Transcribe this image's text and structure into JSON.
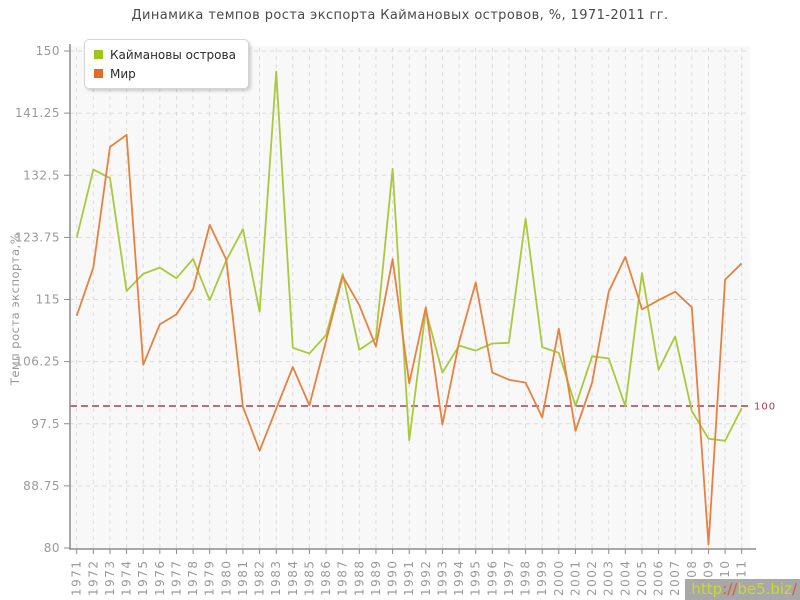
{
  "title": "Динамика темпов роста экспорта Каймановых островов, %, 1971-2011 гг.",
  "y_axis_label": "Темп роста экспорта,%",
  "legend": {
    "items": [
      {
        "label": "Каймановы острова",
        "color": "#9dc41f"
      },
      {
        "label": "Мир",
        "color": "#e26b28"
      }
    ]
  },
  "reference_line": {
    "value": 100,
    "label": "100",
    "color": "#ae3a50"
  },
  "watermark": {
    "prefix": "http",
    "sep": "://",
    "domain": "be5.biz",
    "slash": "/"
  },
  "chart_data": {
    "type": "line",
    "x": [
      1971,
      1972,
      1973,
      1974,
      1975,
      1976,
      1977,
      1978,
      1979,
      1980,
      1981,
      1982,
      1983,
      1984,
      1985,
      1986,
      1987,
      1988,
      1989,
      1990,
      1991,
      1992,
      1993,
      1994,
      1995,
      1996,
      1997,
      1998,
      1999,
      2000,
      2001,
      2002,
      2003,
      2004,
      2005,
      2006,
      2007,
      2008,
      2009,
      2010,
      2011
    ],
    "series": [
      {
        "name": "Каймановы острова",
        "color": "#a9c93d",
        "values": [
          123.7,
          133.3,
          132.1,
          116.2,
          118.6,
          119.5,
          118.0,
          120.7,
          114.9,
          120.5,
          124.9,
          113.3,
          147.1,
          108.2,
          107.4,
          110.0,
          118.6,
          107.9,
          109.5,
          133.4,
          95.2,
          113.5,
          104.7,
          108.5,
          107.8,
          108.8,
          108.9,
          126.4,
          108.3,
          107.5,
          100.0,
          107.0,
          106.7,
          100.0,
          118.7,
          105.1,
          109.8,
          99.3,
          95.4,
          95.1,
          99.7
        ]
      },
      {
        "name": "Мир",
        "color": "#e8813f",
        "values": [
          112.7,
          119.5,
          136.5,
          138.2,
          105.8,
          111.5,
          112.9,
          116.5,
          125.5,
          120.6,
          99.9,
          93.7,
          99.6,
          105.5,
          100.1,
          109.2,
          118.3,
          114.2,
          108.4,
          120.7,
          103.2,
          113.9,
          97.4,
          109.0,
          117.4,
          104.7,
          103.7,
          103.3,
          98.4,
          110.9,
          96.5,
          103.3,
          116.1,
          121.0,
          113.6,
          114.9,
          116.1,
          113.9,
          80.5,
          117.8,
          120.1
        ]
      }
    ],
    "ylim": [
      80,
      150
    ],
    "y_ticks": [
      80,
      88.75,
      97.5,
      106.25,
      115,
      123.75,
      132.5,
      141.25,
      150
    ],
    "xlabel": "",
    "ylabel": "Темп роста экспорта,%",
    "grid": true,
    "legend_position": "top-left"
  }
}
